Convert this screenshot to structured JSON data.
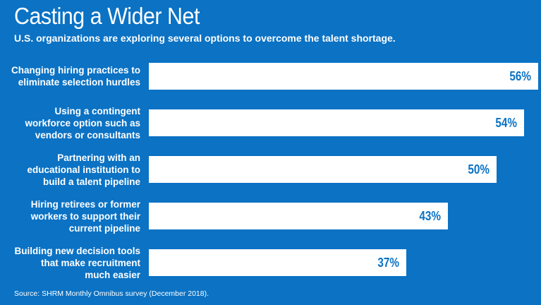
{
  "header": {
    "title": "Casting a Wider Net",
    "subtitle": "U.S. organizations are exploring several options to overcome the talent shortage."
  },
  "footer": {
    "source": "Source: SHRM Monthly Omnibus survey (December 2018)."
  },
  "colors": {
    "background": "#0b72c4",
    "bar": "#ffffff",
    "value_text": "#0b72c4"
  },
  "chart_data": {
    "type": "bar",
    "orientation": "horizontal",
    "categories": [
      "Changing hiring practices to\neliminate selection hurdles",
      "Using a contingent\nworkforce option such as\nvendors or consultants",
      "Partnering with an\neducational institution to\nbuild a talent pipeline",
      "Hiring retirees or former\nworkers to support their\ncurrent pipeline",
      "Building new decision tools\nthat make recruitment\nmuch easier"
    ],
    "values": [
      56,
      54,
      50,
      43,
      37
    ],
    "value_labels": [
      "56%",
      "54%",
      "50%",
      "43%",
      "37%"
    ],
    "unit": "%",
    "xlim": [
      0,
      56
    ],
    "grid": false,
    "legend": "none"
  }
}
